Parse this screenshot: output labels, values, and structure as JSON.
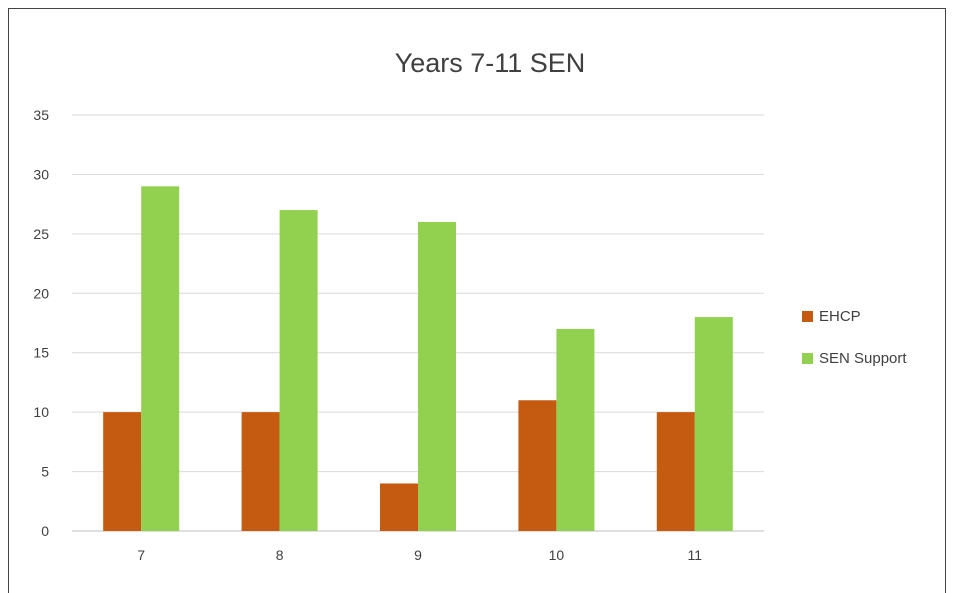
{
  "chart_data": {
    "type": "bar",
    "title": "Years 7-11 SEN",
    "categories": [
      "7",
      "8",
      "9",
      "10",
      "11"
    ],
    "series": [
      {
        "name": "EHCP",
        "color": "#C55A11",
        "values": [
          10,
          10,
          4,
          11,
          10
        ]
      },
      {
        "name": "SEN Support",
        "color": "#92D050",
        "values": [
          29,
          27,
          26,
          17,
          18
        ]
      }
    ],
    "ylim": [
      0,
      35
    ],
    "yticks": [
      0,
      5,
      10,
      15,
      20,
      25,
      30,
      35
    ],
    "grid": true,
    "legend": "right"
  }
}
